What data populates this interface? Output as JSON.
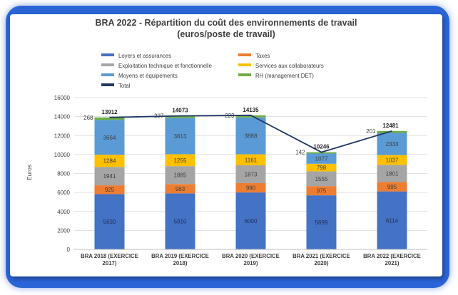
{
  "chart_data": {
    "type": "bar",
    "stacked": true,
    "title": "BRA 2022 - Répartition du coût des environnements de travail",
    "subtitle": "(euros/poste de travail)",
    "xlabel": "",
    "ylabel": "Euros",
    "ylim": [
      0,
      16000
    ],
    "yticks": [
      "0",
      "2000",
      "4000",
      "6000",
      "8000",
      "10000",
      "12000",
      "14000",
      "16000"
    ],
    "grid": true,
    "legend_position": "top",
    "categories": [
      "BRA 2018 (EXERCICE 2017)",
      "BRA 2019 (EXERCICE 2018)",
      "BRA 2020 (EXERCICE 2019)",
      "BRA 2021 (EXERCICE 2020)",
      "BRA 2022 (EXERCICE 2021)"
    ],
    "category_lines": [
      [
        "BRA 2018 (EXERCICE",
        "2017)"
      ],
      [
        "BRA 2019 (EXERCICE",
        "2018)"
      ],
      [
        "BRA 2020 (EXERCICE",
        "2019)"
      ],
      [
        "BRA 2021 (EXERCICE",
        "2020)"
      ],
      [
        "BRA 2022 (EXERCICE",
        "2021)"
      ]
    ],
    "series": [
      {
        "name": "Loyers et assurances",
        "color": "#4472c4",
        "values": [
          5830,
          5910,
          6000,
          5699,
          6114
        ]
      },
      {
        "name": "Taxes",
        "color": "#ed7d31",
        "values": [
          925,
          983,
          990,
          975,
          995
        ]
      },
      {
        "name": "Exploitation technique et fonctionnelle",
        "color": "#a5a5a5",
        "values": [
          1941,
          1885,
          1873,
          1555,
          1801
        ]
      },
      {
        "name": "Services aux collaborateurs",
        "color": "#ffc000",
        "values": [
          1284,
          1255,
          1161,
          798,
          1037
        ]
      },
      {
        "name": "Moyens et équipements",
        "color": "#5b9bd5",
        "values": [
          3664,
          3813,
          3888,
          1077,
          2333
        ]
      },
      {
        "name": "RH (management DET)",
        "color": "#70ad47",
        "values": [
          268,
          227,
          223,
          142,
          201
        ]
      }
    ],
    "total": {
      "name": "Total",
      "color": "#1f3864",
      "values": [
        13912,
        14073,
        14135,
        10246,
        12481
      ]
    }
  }
}
